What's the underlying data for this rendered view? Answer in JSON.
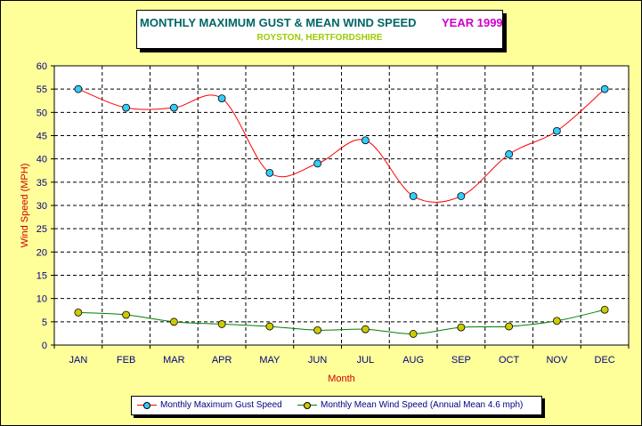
{
  "title": {
    "main": "MONTHLY MAXIMUM GUST & MEAN WIND SPEED",
    "year": "YEAR 1999",
    "subtitle": "ROYSTON, HERTFORDSHIRE"
  },
  "colors": {
    "background": "#ffff99",
    "gust_line": "#ff0000",
    "gust_marker": "#33ccff",
    "mean_line": "#008000",
    "mean_marker": "#cccc00",
    "axis_text": "#000080",
    "axis_title": "#cc0000"
  },
  "chart_data": {
    "type": "line",
    "xlabel": "Month",
    "ylabel": "Wind Speed (MPH)",
    "ylim": [
      0,
      60
    ],
    "ytick_step": 5,
    "grid": true,
    "legend_position": "bottom",
    "categories": [
      "JAN",
      "FEB",
      "MAR",
      "APR",
      "MAY",
      "JUN",
      "JUL",
      "AUG",
      "SEP",
      "OCT",
      "NOV",
      "DEC"
    ],
    "series": [
      {
        "name": "Monthly Maximum Gust Speed",
        "values": [
          55,
          51,
          51,
          53,
          37,
          39,
          44,
          32,
          32,
          41,
          46,
          55
        ]
      },
      {
        "name": "Monthly Mean Wind Speed (Annual Mean 4.6 mph)",
        "values": [
          7.0,
          6.5,
          5.0,
          4.5,
          4.0,
          3.2,
          3.4,
          2.4,
          3.8,
          4.0,
          5.2,
          7.6
        ]
      }
    ]
  }
}
